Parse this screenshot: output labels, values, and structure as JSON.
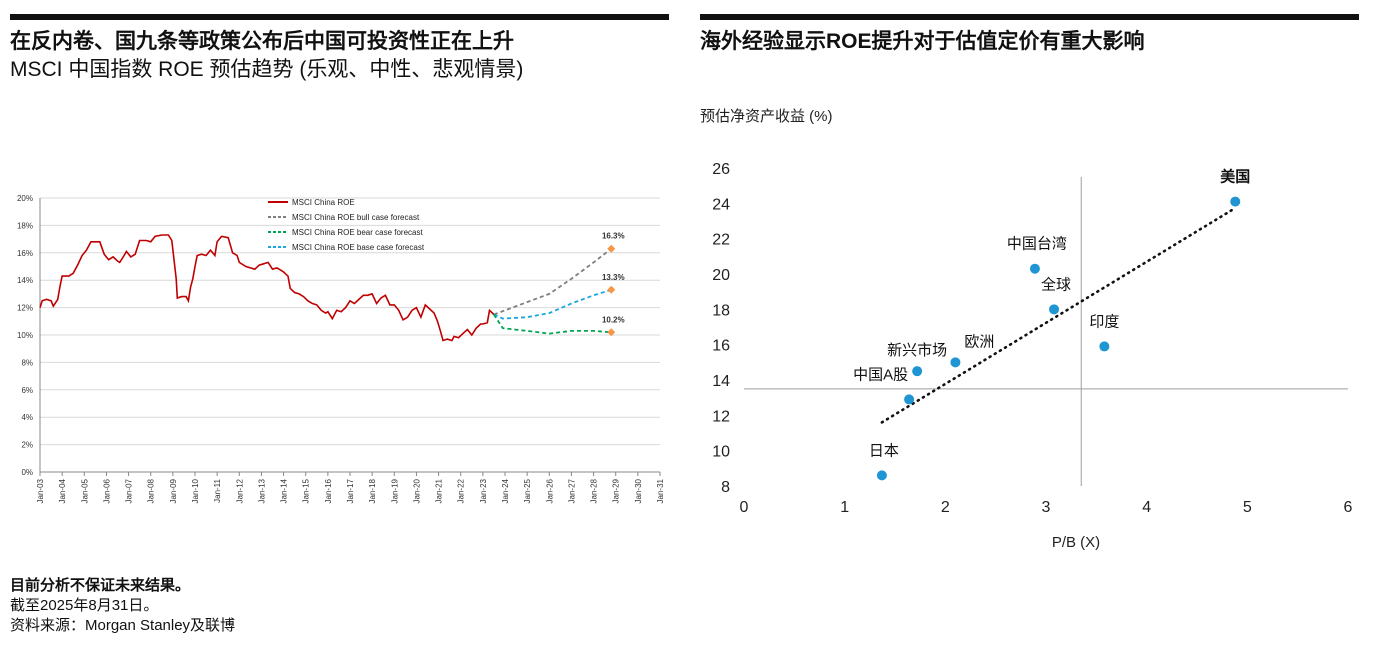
{
  "left_panel": {
    "title_line1": "在反内卷、国九条等政策公布后中国可投资性正在上升",
    "title_line2": "MSCI 中国指数 ROE 预估趋势 (乐观、中性、悲观情景)"
  },
  "right_panel": {
    "title": "海外经验显示ROE提升对于估值定价有重大影响"
  },
  "footer": {
    "disclaimer": "目前分析不保证未来结果。",
    "as_of": "截至2025年8月31日。",
    "source": "资料来源：Morgan Stanley及联博"
  },
  "chart_data": [
    {
      "type": "line",
      "title": "",
      "ylim": [
        0,
        20
      ],
      "y_ticks": [
        "0%",
        "2%",
        "4%",
        "6%",
        "8%",
        "10%",
        "12%",
        "14%",
        "16%",
        "18%",
        "20%"
      ],
      "x_ticks": [
        "Jan-03",
        "Jan-04",
        "Jan-05",
        "Jan-06",
        "Jan-07",
        "Jan-08",
        "Jan-09",
        "Jan-10",
        "Jan-11",
        "Jan-12",
        "Jan-13",
        "Jan-14",
        "Jan-15",
        "Jan-16",
        "Jan-17",
        "Jan-18",
        "Jan-19",
        "Jan-20",
        "Jan-21",
        "Jan-22",
        "Jan-23",
        "Jan-24",
        "Jan-25",
        "Jan-26",
        "Jan-27",
        "Jan-28",
        "Jan-29",
        "Jan-30",
        "Jan-31"
      ],
      "x_range": [
        2003,
        2031
      ],
      "legend": {
        "position": "top-center",
        "entries": [
          {
            "name": "MSCI China ROE",
            "color": "#c00000",
            "dash": "solid"
          },
          {
            "name": "MSCI China ROE bull case forecast",
            "color": "#7f7f7f",
            "dash": "dashed"
          },
          {
            "name": "MSCI China ROE bear case forecast",
            "color": "#00a651",
            "dash": "dashed"
          },
          {
            "name": "MSCI China ROE base case forecast",
            "color": "#1aa7e0",
            "dash": "dashed"
          }
        ]
      },
      "series": [
        {
          "name": "MSCI China ROE",
          "color": "#c00000",
          "points": [
            [
              2003.0,
              12.0
            ],
            [
              2003.1,
              12.5
            ],
            [
              2003.3,
              12.6
            ],
            [
              2003.5,
              12.5
            ],
            [
              2003.6,
              12.1
            ],
            [
              2003.8,
              12.6
            ],
            [
              2003.9,
              13.5
            ],
            [
              2004.0,
              14.3
            ],
            [
              2004.3,
              14.3
            ],
            [
              2004.5,
              14.5
            ],
            [
              2004.7,
              15.1
            ],
            [
              2004.9,
              15.8
            ],
            [
              2005.1,
              16.2
            ],
            [
              2005.3,
              16.8
            ],
            [
              2005.7,
              16.8
            ],
            [
              2005.9,
              15.9
            ],
            [
              2006.1,
              15.5
            ],
            [
              2006.3,
              15.7
            ],
            [
              2006.5,
              15.4
            ],
            [
              2006.6,
              15.3
            ],
            [
              2006.8,
              15.8
            ],
            [
              2006.9,
              16.1
            ],
            [
              2007.1,
              15.7
            ],
            [
              2007.3,
              15.9
            ],
            [
              2007.5,
              16.9
            ],
            [
              2007.8,
              16.9
            ],
            [
              2008.0,
              16.8
            ],
            [
              2008.2,
              17.2
            ],
            [
              2008.5,
              17.3
            ],
            [
              2008.8,
              17.3
            ],
            [
              2008.95,
              16.9
            ],
            [
              2009.05,
              15.5
            ],
            [
              2009.15,
              14.1
            ],
            [
              2009.2,
              12.7
            ],
            [
              2009.4,
              12.8
            ],
            [
              2009.6,
              12.8
            ],
            [
              2009.7,
              12.5
            ],
            [
              2009.8,
              13.5
            ],
            [
              2009.9,
              14.1
            ],
            [
              2010.0,
              15.0
            ],
            [
              2010.1,
              15.8
            ],
            [
              2010.3,
              15.9
            ],
            [
              2010.5,
              15.8
            ],
            [
              2010.7,
              16.2
            ],
            [
              2010.9,
              15.8
            ],
            [
              2011.0,
              16.8
            ],
            [
              2011.2,
              17.2
            ],
            [
              2011.5,
              17.1
            ],
            [
              2011.7,
              16.0
            ],
            [
              2011.9,
              15.8
            ],
            [
              2012.0,
              15.3
            ],
            [
              2012.3,
              15.0
            ],
            [
              2012.5,
              14.9
            ],
            [
              2012.7,
              14.8
            ],
            [
              2012.9,
              15.1
            ],
            [
              2013.1,
              15.2
            ],
            [
              2013.3,
              15.3
            ],
            [
              2013.5,
              14.8
            ],
            [
              2013.7,
              14.9
            ],
            [
              2013.9,
              14.7
            ],
            [
              2014.0,
              14.6
            ],
            [
              2014.2,
              14.3
            ],
            [
              2014.3,
              13.4
            ],
            [
              2014.5,
              13.1
            ],
            [
              2014.7,
              13.0
            ],
            [
              2014.9,
              12.8
            ],
            [
              2015.1,
              12.5
            ],
            [
              2015.3,
              12.3
            ],
            [
              2015.5,
              12.2
            ],
            [
              2015.7,
              11.8
            ],
            [
              2015.9,
              11.6
            ],
            [
              2016.0,
              11.7
            ],
            [
              2016.2,
              11.2
            ],
            [
              2016.4,
              11.8
            ],
            [
              2016.6,
              11.7
            ],
            [
              2016.8,
              12.0
            ],
            [
              2017.0,
              12.5
            ],
            [
              2017.2,
              12.3
            ],
            [
              2017.4,
              12.6
            ],
            [
              2017.6,
              12.9
            ],
            [
              2017.8,
              12.9
            ],
            [
              2018.0,
              13.0
            ],
            [
              2018.2,
              12.3
            ],
            [
              2018.4,
              12.7
            ],
            [
              2018.6,
              12.9
            ],
            [
              2018.8,
              12.2
            ],
            [
              2019.0,
              12.2
            ],
            [
              2019.2,
              11.8
            ],
            [
              2019.4,
              11.1
            ],
            [
              2019.6,
              11.3
            ],
            [
              2019.8,
              11.8
            ],
            [
              2020.0,
              12.0
            ],
            [
              2020.2,
              11.3
            ],
            [
              2020.4,
              12.2
            ],
            [
              2020.6,
              11.9
            ],
            [
              2020.8,
              11.6
            ],
            [
              2020.95,
              11.0
            ],
            [
              2021.1,
              10.2
            ],
            [
              2021.2,
              9.6
            ],
            [
              2021.4,
              9.7
            ],
            [
              2021.6,
              9.6
            ],
            [
              2021.7,
              9.9
            ],
            [
              2021.9,
              9.8
            ],
            [
              2022.1,
              10.1
            ],
            [
              2022.3,
              10.4
            ],
            [
              2022.5,
              10.0
            ],
            [
              2022.7,
              10.5
            ],
            [
              2022.9,
              10.8
            ],
            [
              2023.0,
              10.8
            ],
            [
              2023.2,
              10.9
            ],
            [
              2023.3,
              11.8
            ],
            [
              2023.5,
              11.5
            ]
          ]
        },
        {
          "name": "MSCI China ROE bull case forecast",
          "color": "#7f7f7f",
          "points": [
            [
              2023.5,
              11.5
            ],
            [
              2024.5,
              12.1
            ],
            [
              2026.0,
              13.0
            ],
            [
              2027.0,
              14.1
            ],
            [
              2028.0,
              15.3
            ],
            [
              2028.8,
              16.3
            ]
          ]
        },
        {
          "name": "MSCI China ROE base case forecast",
          "color": "#1aa7e0",
          "points": [
            [
              2023.5,
              11.5
            ],
            [
              2023.9,
              11.2
            ],
            [
              2025.0,
              11.3
            ],
            [
              2026.0,
              11.6
            ],
            [
              2027.0,
              12.3
            ],
            [
              2028.0,
              12.9
            ],
            [
              2028.8,
              13.3
            ]
          ]
        },
        {
          "name": "MSCI China ROE bear case forecast",
          "color": "#00a651",
          "points": [
            [
              2023.5,
              11.5
            ],
            [
              2023.9,
              10.5
            ],
            [
              2025.0,
              10.3
            ],
            [
              2026.0,
              10.1
            ],
            [
              2027.0,
              10.3
            ],
            [
              2028.0,
              10.3
            ],
            [
              2028.8,
              10.2
            ]
          ]
        }
      ],
      "end_labels": [
        {
          "label": "16.3%",
          "value": 16.3
        },
        {
          "label": "13.3%",
          "value": 13.3
        },
        {
          "label": "10.2%",
          "value": 10.2
        }
      ]
    },
    {
      "type": "scatter",
      "title": "",
      "ylabel": "预估净资产收益 (%)",
      "xlabel": "P/B (X)",
      "xlim": [
        0,
        6
      ],
      "ylim": [
        8,
        26
      ],
      "x_ticks": [
        "0",
        "1",
        "2",
        "3",
        "4",
        "5",
        "6"
      ],
      "y_ticks": [
        "8",
        "10",
        "12",
        "14",
        "16",
        "18",
        "20",
        "22",
        "24",
        "26"
      ],
      "reference_lines": {
        "x": 3.35,
        "y": 13.5
      },
      "trendline": {
        "style": "dotted",
        "from": [
          1.37,
          11.6
        ],
        "to": [
          4.87,
          23.7
        ]
      },
      "points": [
        {
          "label": "美国",
          "x": 4.88,
          "y": 24.1,
          "bold": true
        },
        {
          "label": "中国台湾",
          "x": 2.89,
          "y": 20.3
        },
        {
          "label": "全球",
          "x": 3.08,
          "y": 18.0
        },
        {
          "label": "印度",
          "x": 3.58,
          "y": 15.9
        },
        {
          "label": "欧洲",
          "x": 2.1,
          "y": 15.0
        },
        {
          "label": "新兴市场",
          "x": 1.72,
          "y": 14.5
        },
        {
          "label": "中国A股",
          "x": 1.64,
          "y": 12.9
        },
        {
          "label": "日本",
          "x": 1.37,
          "y": 8.6
        }
      ]
    }
  ]
}
